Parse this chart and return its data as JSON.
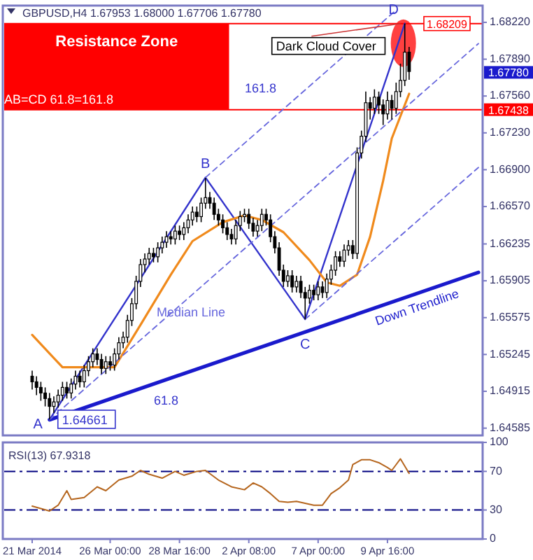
{
  "chart_data": [
    {
      "type": "candlestick",
      "title": "GBPUSD,H4 1.67953 1.68000 1.67706 1.67780",
      "ylim": [
        1.6452,
        1.6837
      ],
      "tick_labels": "y",
      "categories": [
        null,
        null,
        null,
        null,
        null,
        null,
        null,
        null,
        null,
        null,
        null,
        null,
        null,
        null,
        null,
        null,
        null,
        null,
        null,
        null,
        null,
        null,
        null,
        null,
        null,
        null,
        null,
        null,
        null,
        null,
        null,
        null,
        null,
        null,
        null,
        null,
        null,
        null,
        null,
        null,
        null,
        null,
        null,
        null,
        null,
        null,
        null,
        null,
        null,
        null,
        null,
        null,
        null,
        null,
        null,
        null,
        null,
        null,
        null,
        null,
        null,
        null,
        null,
        null,
        null,
        null,
        null,
        null,
        null,
        null,
        null,
        null,
        null,
        null,
        null,
        null,
        null,
        null,
        null,
        null,
        null,
        null,
        null,
        null,
        null,
        null,
        null,
        null,
        null,
        null,
        null,
        null,
        null,
        null,
        null,
        null,
        null,
        null,
        null,
        null,
        null,
        null,
        null,
        null
      ],
      "yticks": [
        {
          "value": 1.6822,
          "label": "1.68220"
        },
        {
          "value": 1.6789,
          "label": "1.67890"
        },
        {
          "value": 1.6756,
          "label": "1.67560"
        },
        {
          "value": 1.6723,
          "label": "1.67230"
        },
        {
          "value": 1.669,
          "label": "1.66900"
        },
        {
          "value": 1.6657,
          "label": "1.66570"
        },
        1.66235,
        1.65905,
        1.65575,
        1.65245,
        1.64915,
        1.64585
      ],
      "ohlc": [
        [
          1.6505,
          1.651,
          1.6493,
          1.65
        ],
        [
          1.65,
          1.6505,
          1.6488,
          1.6495
        ],
        [
          1.6495,
          1.65,
          1.6483,
          1.649
        ],
        [
          1.649,
          1.6495,
          1.6478,
          1.6485
        ],
        [
          1.6485,
          1.649,
          1.64661,
          1.6478
        ],
        [
          1.6478,
          1.6487,
          1.6472,
          1.6482
        ],
        [
          1.6482,
          1.6493,
          1.6477,
          1.6488
        ],
        [
          1.6488,
          1.65,
          1.6483,
          1.6495
        ],
        [
          1.6495,
          1.65,
          1.6485,
          1.649
        ],
        [
          1.649,
          1.6503,
          1.6485,
          1.6498
        ],
        [
          1.6498,
          1.651,
          1.6493,
          1.6505
        ],
        [
          1.6505,
          1.651,
          1.6495,
          1.65
        ],
        [
          1.65,
          1.6515,
          1.6495,
          1.651
        ],
        [
          1.651,
          1.6523,
          1.6505,
          1.6518
        ],
        [
          1.6518,
          1.653,
          1.6513,
          1.6525
        ],
        [
          1.6525,
          1.653,
          1.6515,
          1.652
        ],
        [
          1.652,
          1.6525,
          1.6507,
          1.6512
        ],
        [
          1.6512,
          1.6523,
          1.6507,
          1.6518
        ],
        [
          1.6518,
          1.6523,
          1.651,
          1.6515
        ],
        [
          1.6515,
          1.653,
          1.651,
          1.6525
        ],
        [
          1.6525,
          1.654,
          1.652,
          1.6535
        ],
        [
          1.6535,
          1.6545,
          1.653,
          1.654
        ],
        [
          1.654,
          1.656,
          1.6535,
          1.6555
        ],
        [
          1.6555,
          1.6575,
          1.655,
          1.657
        ],
        [
          1.657,
          1.6595,
          1.6565,
          1.659
        ],
        [
          1.659,
          1.661,
          1.6585,
          1.6605
        ],
        [
          1.6605,
          1.6615,
          1.6598,
          1.661
        ],
        [
          1.661,
          1.662,
          1.6605,
          1.6615
        ],
        [
          1.6615,
          1.662,
          1.6607,
          1.6612
        ],
        [
          1.6612,
          1.6625,
          1.6607,
          1.662
        ],
        [
          1.662,
          1.663,
          1.6615,
          1.6625
        ],
        [
          1.6625,
          1.6635,
          1.662,
          1.663
        ],
        [
          1.663,
          1.6635,
          1.6623,
          1.6628
        ],
        [
          1.6628,
          1.664,
          1.6623,
          1.6635
        ],
        [
          1.6635,
          1.664,
          1.6627,
          1.6632
        ],
        [
          1.6632,
          1.6643,
          1.6627,
          1.6638
        ],
        [
          1.6638,
          1.665,
          1.6633,
          1.6645
        ],
        [
          1.6645,
          1.6657,
          1.664,
          1.6652
        ],
        [
          1.6652,
          1.6657,
          1.6643,
          1.6648
        ],
        [
          1.6648,
          1.6665,
          1.6643,
          1.666
        ],
        [
          1.666,
          1.66827,
          1.6655,
          1.6665
        ],
        [
          1.6665,
          1.667,
          1.6655,
          1.666
        ],
        [
          1.666,
          1.6665,
          1.6645,
          1.665
        ],
        [
          1.665,
          1.6655,
          1.664,
          1.6645
        ],
        [
          1.6645,
          1.665,
          1.6633,
          1.6638
        ],
        [
          1.6638,
          1.6643,
          1.6627,
          1.6632
        ],
        [
          1.6632,
          1.6637,
          1.6623,
          1.6628
        ],
        [
          1.6628,
          1.6645,
          1.6623,
          1.664
        ],
        [
          1.664,
          1.6653,
          1.6635,
          1.6648
        ],
        [
          1.6648,
          1.6655,
          1.6643,
          1.665
        ],
        [
          1.665,
          1.6655,
          1.6637,
          1.6642
        ],
        [
          1.6642,
          1.6647,
          1.663,
          1.6635
        ],
        [
          1.6635,
          1.6645,
          1.663,
          1.664
        ],
        [
          1.664,
          1.6655,
          1.6635,
          1.665
        ],
        [
          1.665,
          1.6655,
          1.664,
          1.6645
        ],
        [
          1.6645,
          1.665,
          1.6625,
          1.663
        ],
        [
          1.663,
          1.6635,
          1.6615,
          1.662
        ],
        [
          1.662,
          1.6625,
          1.6595,
          1.66
        ],
        [
          1.66,
          1.6605,
          1.6585,
          1.659
        ],
        [
          1.659,
          1.66,
          1.6585,
          1.6595
        ],
        [
          1.6595,
          1.66,
          1.658,
          1.6585
        ],
        [
          1.6585,
          1.6595,
          1.658,
          1.659
        ],
        [
          1.659,
          1.6595,
          1.6575,
          1.658
        ],
        [
          1.658,
          1.6585,
          1.65559,
          1.6575
        ],
        [
          1.6575,
          1.6587,
          1.657,
          1.6582
        ],
        [
          1.6582,
          1.6587,
          1.6573,
          1.6578
        ],
        [
          1.6578,
          1.659,
          1.6573,
          1.6585
        ],
        [
          1.6585,
          1.659,
          1.6575,
          1.658
        ],
        [
          1.658,
          1.6597,
          1.6575,
          1.6592
        ],
        [
          1.6592,
          1.6605,
          1.6587,
          1.66
        ],
        [
          1.66,
          1.6617,
          1.6595,
          1.6612
        ],
        [
          1.6612,
          1.6617,
          1.6603,
          1.6608
        ],
        [
          1.6608,
          1.6623,
          1.6603,
          1.6618
        ],
        [
          1.6618,
          1.6627,
          1.6613,
          1.6622
        ],
        [
          1.6622,
          1.6627,
          1.661,
          1.6615
        ],
        [
          1.6615,
          1.671,
          1.661,
          1.6705
        ],
        [
          1.6705,
          1.6725,
          1.67,
          1.672
        ],
        [
          1.672,
          1.676,
          1.6715,
          1.675
        ],
        [
          1.675,
          1.6755,
          1.6735,
          1.6745
        ],
        [
          1.6745,
          1.6762,
          1.674,
          1.6755
        ],
        [
          1.6755,
          1.676,
          1.674,
          1.6748
        ],
        [
          1.6748,
          1.6753,
          1.673,
          1.674
        ],
        [
          1.674,
          1.676,
          1.6735,
          1.6752
        ],
        [
          1.6752,
          1.6757,
          1.6735,
          1.6745
        ],
        [
          1.6745,
          1.6768,
          1.674,
          1.676
        ],
        [
          1.676,
          1.6785,
          1.6755,
          1.677
        ],
        [
          1.677,
          1.68209,
          1.6765,
          1.67953
        ],
        [
          1.67953,
          1.68,
          1.67706,
          1.6778
        ],
        null,
        null,
        null,
        null,
        null,
        null,
        null,
        null,
        null,
        null,
        null,
        null,
        null,
        null,
        null,
        null
      ],
      "series": [
        {
          "type": "line",
          "color": "#3333cc",
          "line_style": "solid",
          "values": [
            null,
            null,
            null,
            null,
            1.6466,
            null,
            null,
            null,
            null,
            null,
            null,
            null,
            null,
            null,
            null,
            null,
            null,
            null,
            null,
            null,
            null,
            null,
            null,
            null,
            null,
            null,
            null,
            null,
            null,
            null,
            null,
            null,
            null,
            null,
            null,
            null,
            null,
            null,
            null,
            null,
            1.6683,
            null,
            null,
            null,
            null,
            null,
            null,
            null,
            null,
            null,
            null,
            null,
            null,
            null,
            null,
            null,
            null,
            null,
            null,
            null,
            null,
            null,
            null,
            1.6556,
            null,
            null,
            null,
            null,
            null,
            null,
            null,
            null,
            null,
            null,
            null,
            null,
            null,
            null,
            null,
            null,
            null,
            null,
            null,
            null,
            null,
            null,
            1.6821,
            null,
            null,
            null,
            null,
            null,
            null,
            null,
            null,
            null,
            null,
            null,
            null,
            null,
            null,
            null,
            null,
            null
          ]
        },
        {
          "type": "line",
          "color": "#f08a1c",
          "line_style": "solid",
          "values": [
            1.6542,
            null,
            null,
            null,
            null,
            null,
            null,
            1.6513,
            null,
            null,
            null,
            null,
            null,
            null,
            null,
            null,
            null,
            null,
            null,
            1.6513,
            null,
            null,
            null,
            null,
            null,
            1.6551,
            null,
            null,
            null,
            null,
            null,
            null,
            1.6596,
            null,
            null,
            null,
            null,
            1.6626,
            null,
            null,
            null,
            null,
            null,
            null,
            1.6643,
            null,
            null,
            null,
            null,
            1.6649,
            null,
            null,
            null,
            1.6645,
            null,
            null,
            null,
            null,
            1.6634,
            null,
            null,
            null,
            null,
            null,
            1.6609,
            null,
            null,
            null,
            1.6589,
            null,
            null,
            1.6586,
            null,
            null,
            null,
            1.6596,
            null,
            null,
            1.663,
            null,
            null,
            1.668,
            null,
            1.6718,
            null,
            null,
            null,
            1.6758,
            null,
            null,
            null,
            null,
            null,
            null,
            null,
            null,
            null,
            null,
            null,
            null,
            null,
            null,
            null,
            null
          ]
        },
        {
          "type": "line",
          "name": "Down Trendline",
          "color": "#1a1acc",
          "line_style": "solid",
          "values": [
            null,
            null,
            null,
            null,
            1.6466,
            null,
            null,
            null,
            null,
            null,
            null,
            null,
            null,
            null,
            null,
            null,
            null,
            null,
            null,
            null,
            null,
            null,
            null,
            null,
            null,
            null,
            null,
            null,
            null,
            null,
            null,
            null,
            null,
            null,
            null,
            null,
            null,
            null,
            null,
            null,
            null,
            null,
            null,
            null,
            null,
            null,
            null,
            null,
            null,
            null,
            null,
            null,
            null,
            null,
            null,
            null,
            null,
            null,
            null,
            null,
            null,
            null,
            null,
            null,
            null,
            null,
            null,
            null,
            null,
            null,
            null,
            null,
            null,
            null,
            null,
            null,
            null,
            null,
            null,
            null,
            null,
            null,
            null,
            null,
            null,
            null,
            null,
            null,
            null,
            null,
            null,
            null,
            null,
            null,
            null,
            null,
            null,
            null,
            null,
            null,
            null,
            null,
            null,
            1.6598
          ]
        },
        {
          "type": "line",
          "name": "Median Line",
          "color": "#6666dd",
          "line_style": "dashed",
          "values": [
            null,
            null,
            null,
            null,
            1.6466,
            null,
            null,
            null,
            null,
            null,
            null,
            null,
            null,
            null,
            null,
            null,
            null,
            null,
            null,
            null,
            null,
            null,
            null,
            null,
            null,
            null,
            null,
            null,
            null,
            null,
            null,
            null,
            null,
            null,
            null,
            null,
            null,
            null,
            null,
            null,
            null,
            null,
            null,
            null,
            null,
            null,
            null,
            null,
            null,
            null,
            null,
            null,
            null,
            null,
            null,
            null,
            null,
            null,
            null,
            null,
            null,
            null,
            null,
            null,
            null,
            null,
            null,
            null,
            null,
            null,
            null,
            null,
            null,
            null,
            null,
            null,
            null,
            null,
            null,
            null,
            null,
            null,
            null,
            null,
            null,
            null,
            null,
            null,
            null,
            null,
            null,
            null,
            null,
            null,
            null,
            null,
            null,
            null,
            null,
            null,
            null,
            null,
            null,
            1.6803
          ]
        },
        {
          "type": "line",
          "color": "#6666dd",
          "line_style": "dashed",
          "values": [
            null,
            null,
            null,
            null,
            null,
            null,
            null,
            null,
            null,
            null,
            null,
            null,
            null,
            null,
            null,
            null,
            null,
            null,
            null,
            null,
            null,
            null,
            null,
            null,
            null,
            null,
            null,
            null,
            null,
            null,
            null,
            null,
            null,
            null,
            null,
            null,
            null,
            null,
            null,
            null,
            1.6683,
            null,
            null,
            null,
            null,
            null,
            null,
            null,
            null,
            null,
            null,
            null,
            null,
            null,
            null,
            null,
            null,
            null,
            null,
            null,
            null,
            null,
            null,
            null,
            null,
            null,
            null,
            null,
            null,
            null,
            null,
            null,
            null,
            null,
            null,
            null,
            null,
            null,
            null,
            null,
            null,
            null,
            null,
            null,
            1.6833,
            null,
            null,
            null,
            null,
            null,
            null,
            null,
            null,
            null,
            null,
            null,
            null,
            null,
            null,
            null,
            null,
            null,
            null,
            null
          ]
        },
        {
          "type": "line",
          "color": "#6666dd",
          "line_style": "dashed",
          "values": [
            null,
            null,
            null,
            null,
            null,
            null,
            null,
            null,
            null,
            null,
            null,
            null,
            null,
            null,
            null,
            null,
            null,
            null,
            null,
            null,
            null,
            null,
            null,
            null,
            null,
            null,
            null,
            null,
            null,
            null,
            null,
            null,
            null,
            null,
            null,
            null,
            null,
            null,
            null,
            null,
            null,
            null,
            null,
            null,
            null,
            null,
            null,
            null,
            null,
            null,
            null,
            null,
            null,
            null,
            null,
            null,
            null,
            null,
            null,
            null,
            null,
            null,
            null,
            1.6556,
            null,
            null,
            null,
            null,
            null,
            null,
            null,
            null,
            null,
            null,
            null,
            null,
            null,
            null,
            null,
            null,
            null,
            null,
            null,
            null,
            null,
            null,
            null,
            null,
            null,
            null,
            null,
            null,
            null,
            null,
            null,
            null,
            null,
            null,
            null,
            null,
            null,
            null,
            null,
            1.6692
          ]
        }
      ],
      "bands": [
        {
          "axis": "y",
          "from": 1.67438,
          "to": 1.68209,
          "label": "Resistance Zone",
          "color": "#ff0000"
        }
      ],
      "ref_lines": [
        {
          "axis": "y",
          "value": 1.68209,
          "label": "1.68209",
          "color": "#ff0000",
          "line_style": "solid"
        },
        {
          "axis": "y",
          "value": 1.67438,
          "label": "1.67438",
          "color": "#ff0000",
          "line_style": "solid"
        }
      ],
      "annotations": [
        "A",
        "1.64661",
        {
          "text": "B",
          "y": 1.66827
        },
        {
          "text": "C",
          "y": 1.65559
        },
        {
          "text": "D",
          "y": 1.68209
        },
        {
          "text": "Dark Cloud Cover",
          "y": 1.68209
        },
        "1.67780",
        "AB=CD 61.8=161.8",
        "161.8",
        "61.8"
      ]
    },
    {
      "type": "line",
      "title": "RSI(13) 67.9318",
      "ylim": [
        0,
        100
      ],
      "yticks": [
        0,
        30,
        70,
        100
      ],
      "categories": [
        "21 Mar 2014",
        null,
        null,
        null,
        null,
        null,
        null,
        null,
        null,
        null,
        null,
        null,
        null,
        null,
        null,
        null,
        null,
        null,
        "26 Mar 00:00",
        null,
        null,
        null,
        null,
        null,
        null,
        null,
        null,
        null,
        null,
        null,
        null,
        null,
        null,
        null,
        "28 Mar 16:00",
        null,
        null,
        null,
        null,
        null,
        null,
        null,
        null,
        null,
        null,
        null,
        null,
        null,
        null,
        null,
        "2 Apr 08:00",
        null,
        null,
        null,
        null,
        null,
        null,
        null,
        null,
        null,
        null,
        null,
        null,
        null,
        null,
        null,
        "7 Apr 00:00",
        null,
        null,
        null,
        null,
        null,
        null,
        null,
        null,
        null,
        null,
        null,
        null,
        null,
        null,
        null,
        "9 Apr 16:00",
        null,
        null,
        null,
        null,
        null,
        null,
        null,
        null,
        null,
        null,
        null,
        null,
        null,
        null,
        null,
        null,
        null,
        null,
        null,
        null,
        null
      ],
      "ref_lines": [
        {
          "axis": "y",
          "value": 70,
          "color": "#000080",
          "line_style": "dashed"
        },
        {
          "axis": "y",
          "value": 30,
          "color": "#000080",
          "line_style": "dashed"
        }
      ],
      "series": [
        {
          "color": "#b5651d",
          "values": [
            34,
            null,
            null,
            null,
            29,
            null,
            35,
            null,
            50,
            41,
            null,
            null,
            43,
            null,
            null,
            54,
            null,
            50,
            null,
            null,
            61,
            null,
            null,
            65,
            null,
            71,
            null,
            67,
            null,
            null,
            63,
            null,
            null,
            70,
            null,
            66,
            null,
            null,
            70,
            null,
            71,
            null,
            null,
            61,
            null,
            null,
            54,
            null,
            null,
            51,
            null,
            58,
            null,
            54,
            null,
            47,
            null,
            39,
            null,
            38,
            null,
            39,
            null,
            37,
            null,
            35,
            null,
            35,
            null,
            47,
            null,
            53,
            null,
            61,
            77,
            null,
            82,
            null,
            82,
            null,
            79,
            null,
            74,
            71,
            77,
            83,
            null,
            68,
            null,
            null,
            null,
            null,
            null,
            null,
            null,
            null,
            null,
            null,
            null,
            null,
            null,
            null,
            null,
            null
          ]
        }
      ]
    }
  ]
}
